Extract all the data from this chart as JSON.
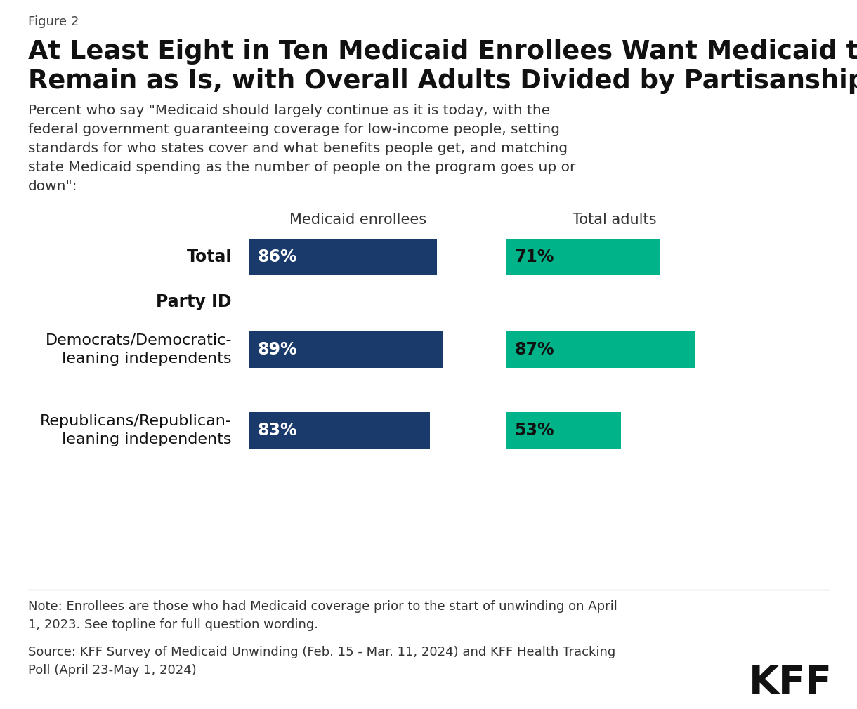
{
  "figure_label": "Figure 2",
  "title_line1": "At Least Eight in Ten Medicaid Enrollees Want Medicaid to",
  "title_line2": "Remain as Is, with Overall Adults Divided by Partisanship",
  "subtitle_lines": [
    "Percent who say \"Medicaid should largely continue as it is today, with the",
    "federal government guaranteeing coverage for low-income people, setting",
    "standards for who states cover and what benefits people get, and matching",
    "state Medicaid spending as the number of people on the program goes up or",
    "down\":"
  ],
  "col1_label": "Medicaid enrollees",
  "col2_label": "Total adults",
  "rows": [
    {
      "category_lines": [
        "Total"
      ],
      "bold": true,
      "header": false,
      "enrollee_val": 86,
      "adult_val": 71
    },
    {
      "category_lines": [
        "Party ID"
      ],
      "bold": true,
      "header": true,
      "enrollee_val": null,
      "adult_val": null
    },
    {
      "category_lines": [
        "Democrats/Democratic-",
        "leaning independents"
      ],
      "bold": false,
      "header": false,
      "enrollee_val": 89,
      "adult_val": 87
    },
    {
      "category_lines": [
        "Republicans/Republican-",
        "leaning independents"
      ],
      "bold": false,
      "header": false,
      "enrollee_val": 83,
      "adult_val": 53
    }
  ],
  "enrollee_color": "#1a3a6b",
  "adult_color": "#00b389",
  "note_text": "Note: Enrollees are those who had Medicaid coverage prior to the start of unwinding on April\n1, 2023. See topline for full question wording.",
  "source_text": "Source: KFF Survey of Medicaid Unwinding (Feb. 15 - Mar. 11, 2024) and KFF Health Tracking\nPoll (April 23-May 1, 2024)",
  "background_color": "#ffffff"
}
